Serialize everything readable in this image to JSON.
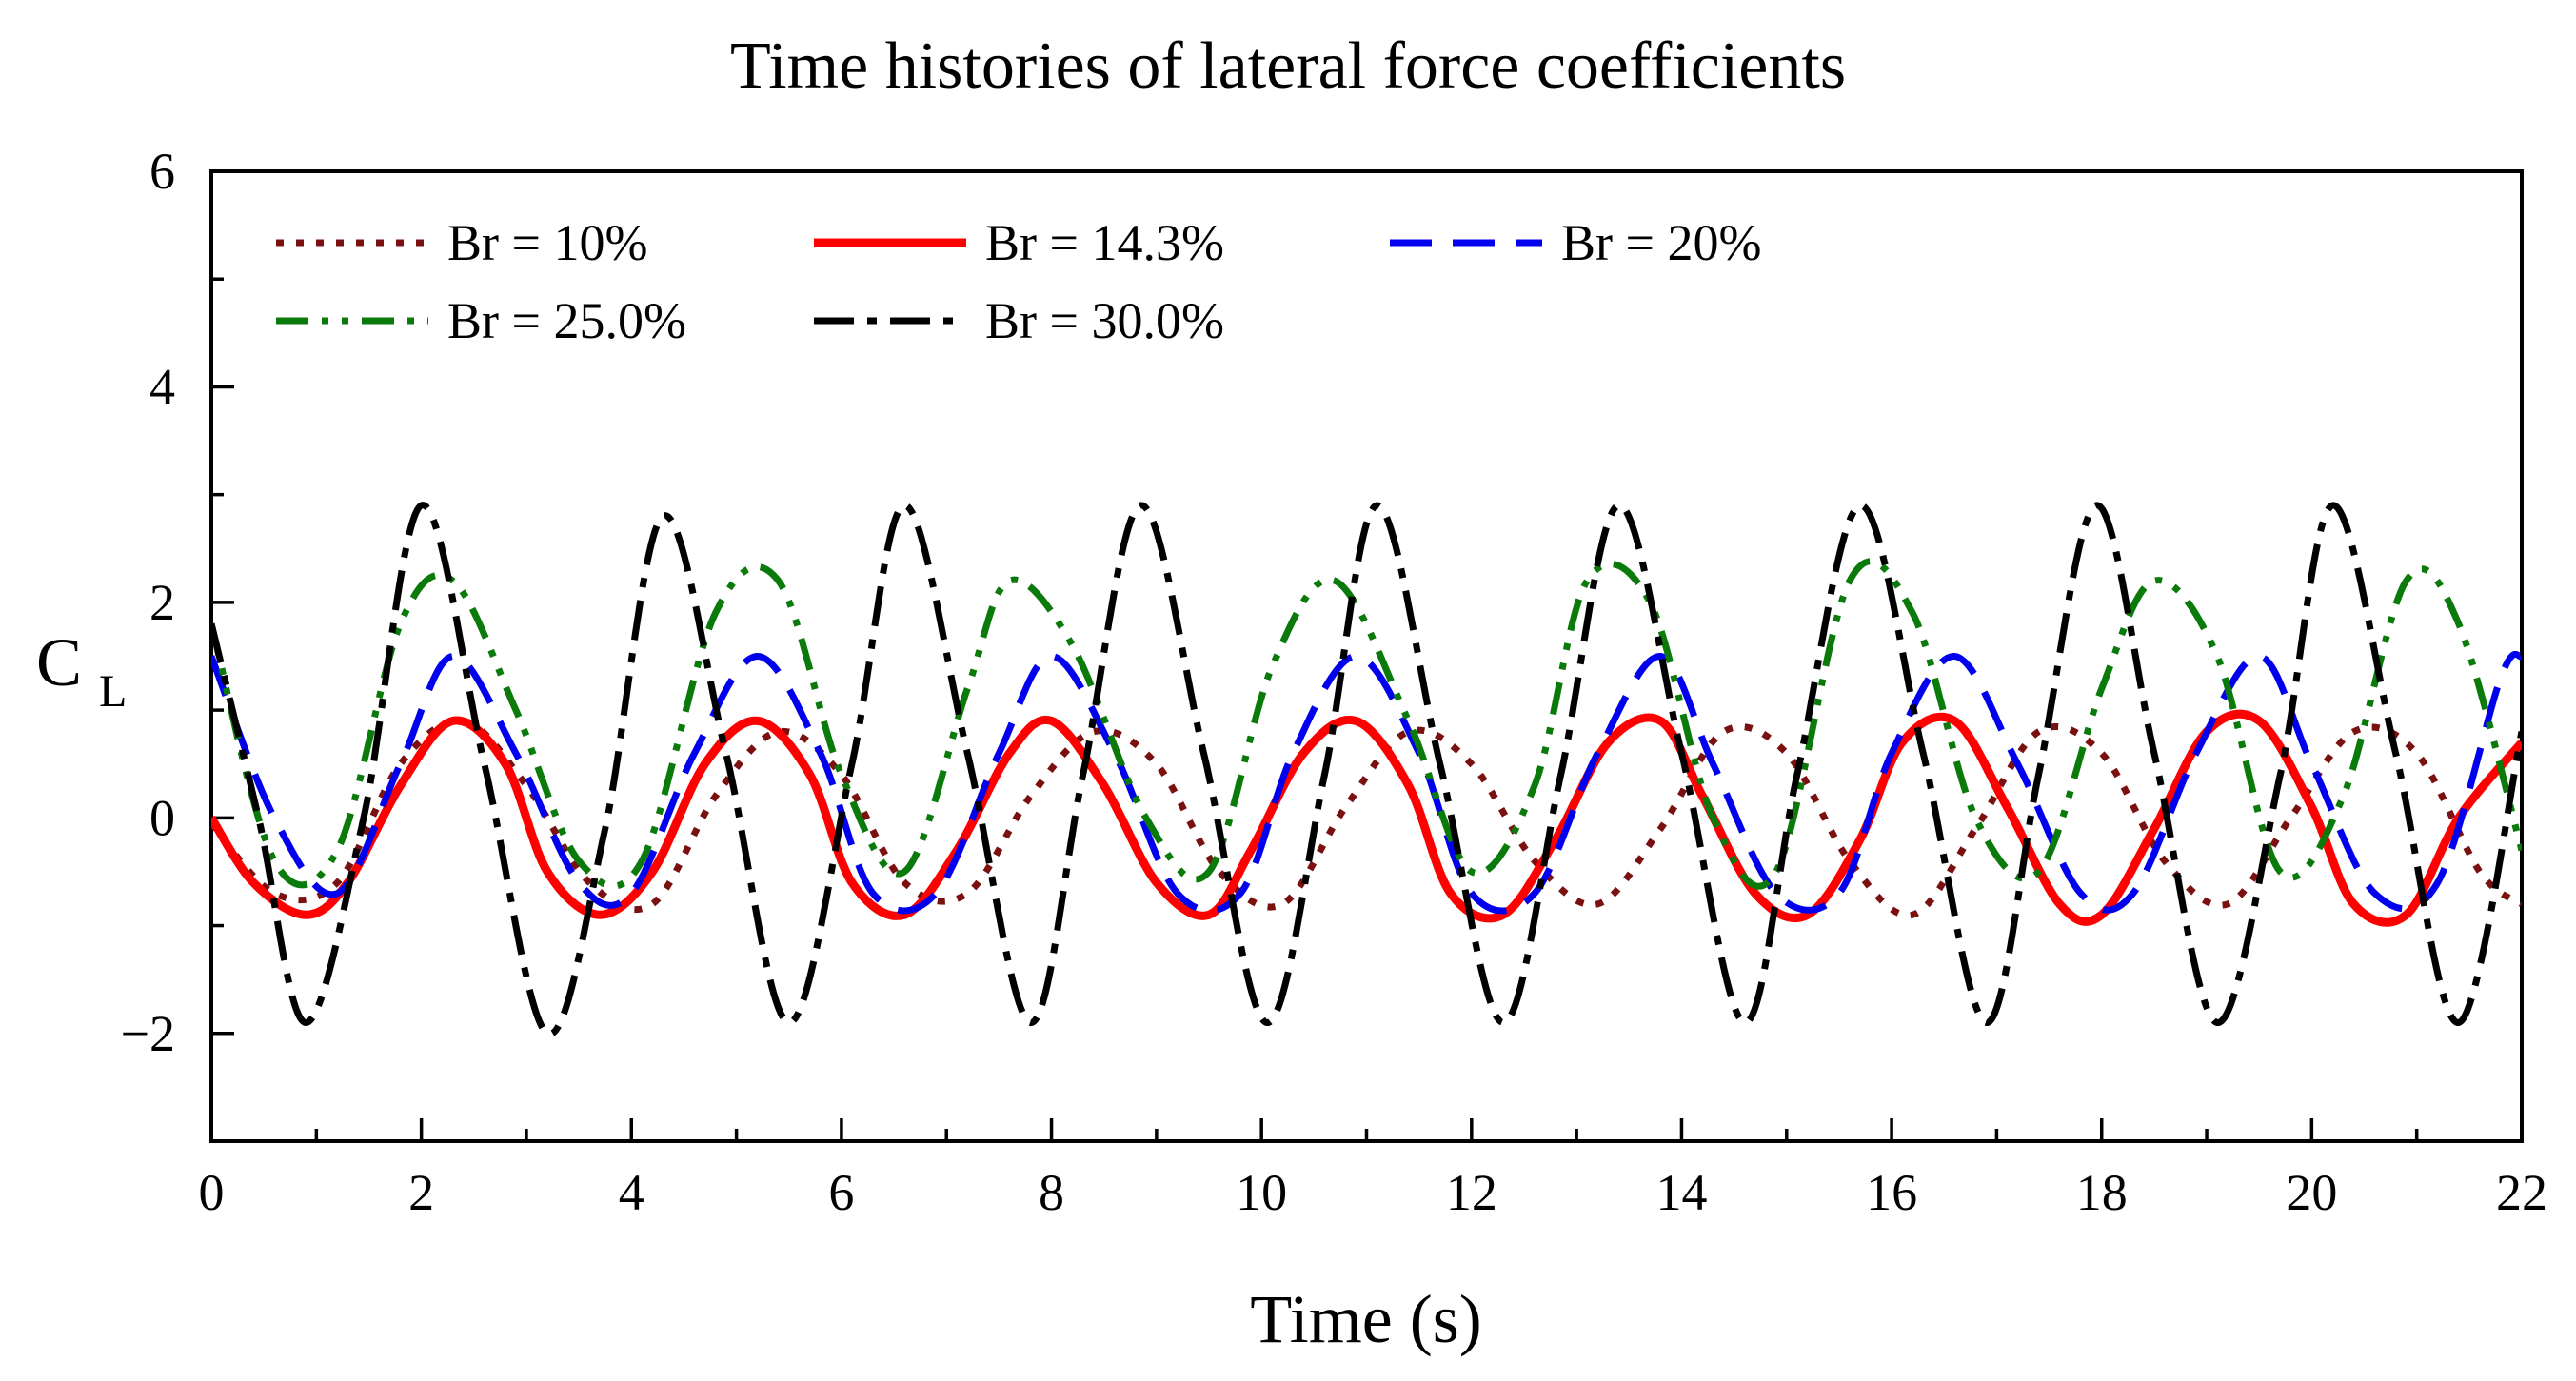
{
  "chart_data": {
    "type": "line",
    "title": "Time histories of lateral force coefficients",
    "xlabel": "Time (s)",
    "ylabel_main": "C",
    "ylabel_sub": "L",
    "xlim": [
      0,
      22
    ],
    "ylim": [
      -3,
      6
    ],
    "x_ticks": [
      0,
      2,
      4,
      6,
      8,
      10,
      12,
      14,
      16,
      18,
      20,
      22
    ],
    "y_ticks": [
      -2,
      0,
      2,
      4,
      6
    ],
    "x_tick_labels": [
      "0",
      "2",
      "4",
      "6",
      "8",
      "10",
      "12",
      "14",
      "16",
      "18",
      "20",
      "22"
    ],
    "y_tick_labels": [
      "−2",
      "0",
      "2",
      "4",
      "6"
    ],
    "grid": false,
    "legend_placement": "top-left",
    "series": [
      {
        "name": "Br = 10%",
        "color": "#7b1010",
        "style": "dotted",
        "x": [
          0,
          0.6,
          1.2,
          1.8,
          2.4,
          3.0,
          3.6,
          4.2,
          4.8,
          5.4,
          6.0,
          6.6,
          7.2,
          7.8,
          8.4,
          9.0,
          9.6,
          10.2,
          10.8,
          11.4,
          12.0,
          12.6,
          13.2,
          13.8,
          14.4,
          15.0,
          15.6,
          16.2,
          16.8,
          17.4,
          18.0,
          18.6,
          19.2,
          19.8,
          20.4,
          21.0,
          21.6,
          22.0
        ],
        "y": [
          -0.05,
          -0.7,
          -0.6,
          0.5,
          0.9,
          0.3,
          -0.6,
          -0.8,
          0.2,
          0.8,
          0.4,
          -0.6,
          -0.7,
          0.2,
          0.8,
          0.5,
          -0.5,
          -0.8,
          0.1,
          0.8,
          0.5,
          -0.4,
          -0.8,
          -0.1,
          0.8,
          0.6,
          -0.4,
          -0.9,
          -0.1,
          0.8,
          0.6,
          -0.4,
          -0.8,
          0.0,
          0.8,
          0.6,
          -0.5,
          -0.8
        ]
      },
      {
        "name": "Br = 14.3%",
        "color": "#ff0000",
        "style": "solid",
        "x": [
          0,
          0.4,
          0.9,
          1.3,
          1.8,
          2.3,
          2.8,
          3.2,
          3.7,
          4.2,
          4.7,
          5.2,
          5.7,
          6.1,
          6.6,
          7.1,
          7.6,
          8.0,
          8.5,
          9.0,
          9.5,
          9.9,
          10.4,
          10.9,
          11.4,
          11.8,
          12.3,
          12.8,
          13.3,
          13.8,
          14.2,
          14.7,
          15.2,
          15.7,
          16.1,
          16.6,
          17.1,
          17.6,
          18.0,
          18.5,
          19.0,
          19.5,
          20.0,
          20.4,
          20.9,
          21.4,
          22.0
        ],
        "y": [
          0.0,
          -0.6,
          -0.9,
          -0.6,
          0.3,
          0.9,
          0.5,
          -0.5,
          -0.9,
          -0.5,
          0.5,
          0.9,
          0.4,
          -0.6,
          -0.9,
          -0.3,
          0.6,
          0.9,
          0.3,
          -0.6,
          -0.9,
          -0.3,
          0.6,
          0.9,
          0.3,
          -0.7,
          -0.9,
          -0.2,
          0.7,
          0.9,
          0.2,
          -0.7,
          -0.9,
          -0.2,
          0.7,
          0.9,
          0.1,
          -0.8,
          -0.9,
          -0.1,
          0.8,
          0.9,
          0.1,
          -0.8,
          -0.9,
          0.0,
          0.7
        ]
      },
      {
        "name": "Br = 20%",
        "color": "#0000ee",
        "style": "dashed",
        "x": [
          0,
          0.6,
          1.2,
          1.8,
          2.3,
          2.9,
          3.5,
          4.0,
          4.6,
          5.2,
          5.8,
          6.3,
          6.9,
          7.5,
          8.0,
          8.6,
          9.2,
          9.8,
          10.3,
          10.9,
          11.5,
          12.0,
          12.6,
          13.2,
          13.8,
          14.3,
          14.9,
          15.5,
          16.0,
          16.6,
          17.2,
          17.8,
          18.3,
          18.9,
          19.5,
          20.0,
          20.6,
          21.2,
          21.8,
          22.0
        ],
        "y": [
          1.5,
          0.0,
          -0.7,
          0.5,
          1.5,
          0.6,
          -0.6,
          -0.7,
          0.6,
          1.5,
          0.6,
          -0.7,
          -0.7,
          0.6,
          1.5,
          0.6,
          -0.7,
          -0.7,
          0.6,
          1.5,
          0.6,
          -0.7,
          -0.7,
          0.6,
          1.5,
          0.5,
          -0.7,
          -0.7,
          0.6,
          1.5,
          0.5,
          -0.7,
          -0.7,
          0.6,
          1.5,
          0.5,
          -0.7,
          -0.6,
          1.3,
          1.5
        ]
      },
      {
        "name": "Br = 25.0%",
        "color": "#0a7a0a",
        "style": "dash-dot-dot",
        "x": [
          0,
          0.6,
          1.2,
          1.8,
          2.3,
          2.9,
          3.5,
          4.1,
          4.8,
          5.4,
          6.0,
          6.6,
          7.2,
          7.6,
          8.2,
          8.9,
          9.5,
          10.1,
          10.7,
          11.4,
          12.0,
          12.6,
          13.1,
          13.7,
          14.3,
          14.9,
          15.6,
          16.2,
          16.8,
          17.4,
          18.0,
          18.5,
          19.1,
          19.7,
          20.3,
          20.9,
          21.4,
          22.0
        ],
        "y": [
          1.8,
          -0.4,
          -0.3,
          1.8,
          2.2,
          1.0,
          -0.4,
          -0.4,
          1.9,
          2.2,
          0.4,
          -0.5,
          1.2,
          2.2,
          1.6,
          0.0,
          -0.5,
          1.4,
          2.2,
          0.9,
          -0.5,
          0.3,
          2.2,
          2.0,
          0.0,
          -0.5,
          2.2,
          1.9,
          0.0,
          -0.5,
          1.2,
          2.2,
          1.5,
          -0.5,
          0.2,
          2.2,
          1.8,
          -0.3
        ]
      },
      {
        "name": "Br = 30.0%",
        "color": "#000000",
        "style": "dash-dot",
        "x": [
          0,
          0.45,
          0.9,
          1.45,
          2.0,
          2.6,
          3.2,
          3.75,
          4.3,
          4.9,
          5.5,
          6.1,
          6.6,
          7.2,
          7.8,
          8.3,
          8.85,
          9.45,
          10.05,
          10.6,
          11.1,
          11.7,
          12.3,
          12.85,
          13.4,
          14.0,
          14.6,
          15.1,
          15.7,
          16.3,
          16.9,
          17.4,
          17.95,
          18.5,
          19.1,
          19.7,
          20.2,
          20.8,
          21.4,
          22.0
        ],
        "y": [
          1.8,
          0.0,
          -1.9,
          0.0,
          2.9,
          0.5,
          -2.0,
          -0.1,
          2.8,
          0.6,
          -1.9,
          0.5,
          2.9,
          0.6,
          -1.9,
          0.4,
          2.9,
          0.6,
          -1.9,
          0.4,
          2.9,
          0.5,
          -1.9,
          0.4,
          2.9,
          0.6,
          -1.9,
          0.4,
          2.9,
          0.6,
          -1.9,
          0.4,
          2.9,
          0.6,
          -1.9,
          0.4,
          2.9,
          0.6,
          -1.9,
          0.8
        ]
      }
    ]
  }
}
